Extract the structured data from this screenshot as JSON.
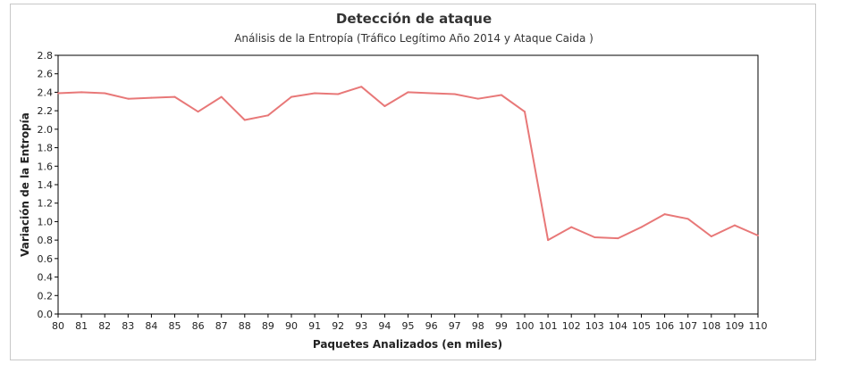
{
  "chart_data": {
    "type": "line",
    "title": "Detección de ataque",
    "subtitle": "Análisis de la Entropía (Tráfico Legítimo Año 2014 y Ataque Caida )",
    "xlabel": "Paquetes Analizados (en miles)",
    "ylabel": "Variación de la Entropía",
    "xlim": [
      80,
      110
    ],
    "ylim": [
      0.0,
      2.8
    ],
    "x_ticks": [
      "80",
      "81",
      "82",
      "83",
      "84",
      "85",
      "86",
      "87",
      "88",
      "89",
      "90",
      "91",
      "92",
      "93",
      "94",
      "95",
      "96",
      "97",
      "98",
      "99",
      "100",
      "101",
      "102",
      "103",
      "104",
      "105",
      "106",
      "107",
      "108",
      "109",
      "110"
    ],
    "y_ticks": [
      "0.0",
      "0.2",
      "0.4",
      "0.6",
      "0.8",
      "1.0",
      "1.2",
      "1.4",
      "1.6",
      "1.8",
      "2.0",
      "2.2",
      "2.4",
      "2.6",
      "2.8"
    ],
    "grid": false,
    "series": [
      {
        "color": "#e87878",
        "x": [
          80,
          81,
          82,
          83,
          84,
          85,
          86,
          87,
          88,
          89,
          90,
          91,
          92,
          93,
          94,
          95,
          96,
          97,
          98,
          99,
          100,
          101,
          102,
          103,
          104,
          105,
          106,
          107,
          108,
          109,
          110
        ],
        "values": [
          2.39,
          2.4,
          2.39,
          2.33,
          2.34,
          2.35,
          2.19,
          2.35,
          2.1,
          2.15,
          2.35,
          2.39,
          2.38,
          2.46,
          2.25,
          2.4,
          2.39,
          2.38,
          2.33,
          2.37,
          2.19,
          0.8,
          0.94,
          0.83,
          0.82,
          0.94,
          1.08,
          1.03,
          0.84,
          0.96,
          0.85
        ]
      }
    ]
  }
}
